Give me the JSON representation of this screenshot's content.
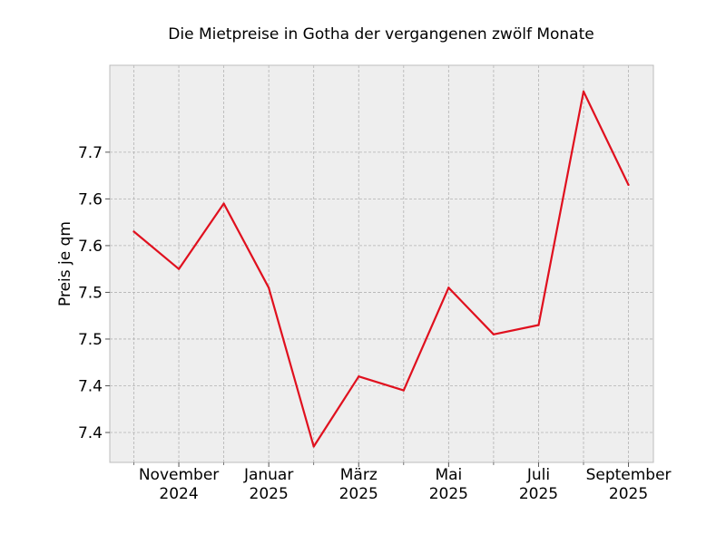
{
  "chart_data": {
    "type": "line",
    "title": "Die Mietpreise in Gotha der vergangenen zwölf Monate",
    "xlabel": "",
    "ylabel": "Preis je qm",
    "x": [
      "2024-10",
      "2024-11",
      "2024-12",
      "2025-01",
      "2025-02",
      "2025-03",
      "2025-04",
      "2025-05",
      "2025-06",
      "2025-07",
      "2025-08",
      "2025-09"
    ],
    "series": [
      {
        "color": "#e0101e",
        "values": [
          7.59,
          7.55,
          7.62,
          7.53,
          7.36,
          7.435,
          7.42,
          7.53,
          7.48,
          7.49,
          7.74,
          7.64
        ]
      }
    ],
    "ylim": [
      7.343,
      7.768
    ],
    "y_ticks": [
      {
        "value": 7.375,
        "label": "7.4"
      },
      {
        "value": 7.425,
        "label": "7.4"
      },
      {
        "value": 7.475,
        "label": "7.5"
      },
      {
        "value": 7.525,
        "label": "7.5"
      },
      {
        "value": 7.575,
        "label": "7.6"
      },
      {
        "value": 7.625,
        "label": "7.6"
      },
      {
        "value": 7.675,
        "label": "7.7"
      }
    ],
    "x_ticks": [
      {
        "x": "2024-11",
        "label": [
          "November",
          "2024"
        ]
      },
      {
        "x": "2025-01",
        "label": [
          "Januar",
          "2025"
        ]
      },
      {
        "x": "2025-03",
        "label": [
          "März",
          "2025"
        ]
      },
      {
        "x": "2025-05",
        "label": [
          "Mai",
          "2025"
        ]
      },
      {
        "x": "2025-07",
        "label": [
          "Juli",
          "2025"
        ]
      },
      {
        "x": "2025-09",
        "label": [
          "September",
          "2025"
        ]
      }
    ],
    "x_minor_ticks": [
      "2024-10",
      "2024-12",
      "2025-02",
      "2025-04",
      "2025-06",
      "2025-08"
    ],
    "grid": true,
    "style": {
      "background": "#eeeeee",
      "grid_color": "#b2b2b2",
      "frame_color": "#bcbcbc"
    }
  }
}
